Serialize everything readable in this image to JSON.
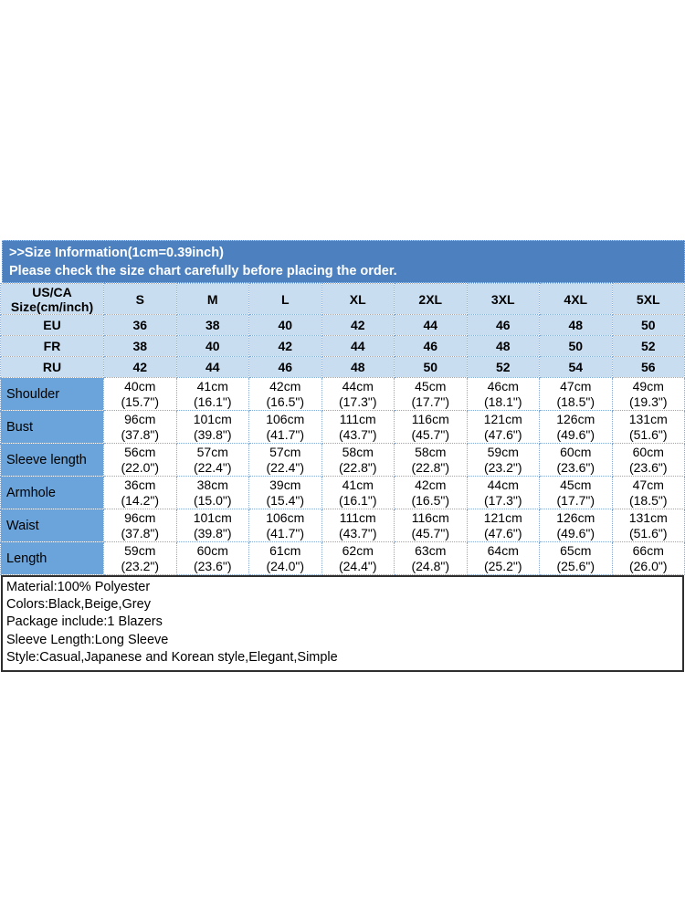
{
  "banner": {
    "line1": ">>Size Information(1cm=0.39inch)",
    "line2": "Please check the size chart carefully before placing the order."
  },
  "table": {
    "corner": [
      "US/CA",
      "Size(cm/inch)"
    ],
    "sizes": [
      "S",
      "M",
      "L",
      "XL",
      "2XL",
      "3XL",
      "4XL",
      "5XL"
    ],
    "regions": [
      {
        "label": "EU",
        "values": [
          "36",
          "38",
          "40",
          "42",
          "44",
          "46",
          "48",
          "50"
        ]
      },
      {
        "label": "FR",
        "values": [
          "38",
          "40",
          "42",
          "44",
          "46",
          "48",
          "50",
          "52"
        ]
      },
      {
        "label": "RU",
        "values": [
          "42",
          "44",
          "46",
          "48",
          "50",
          "52",
          "54",
          "56"
        ]
      }
    ],
    "measurements": [
      {
        "label": "Shoulder",
        "cm": [
          "40cm",
          "41cm",
          "42cm",
          "44cm",
          "45cm",
          "46cm",
          "47cm",
          "49cm"
        ],
        "inch": [
          "(15.7\")",
          "(16.1\")",
          "(16.5\")",
          "(17.3\")",
          "(17.7\")",
          "(18.1\")",
          "(18.5\")",
          "(19.3\")"
        ]
      },
      {
        "label": "Bust",
        "cm": [
          "96cm",
          "101cm",
          "106cm",
          "111cm",
          "116cm",
          "121cm",
          "126cm",
          "131cm"
        ],
        "inch": [
          "(37.8\")",
          "(39.8\")",
          "(41.7\")",
          "(43.7\")",
          "(45.7\")",
          "(47.6\")",
          "(49.6\")",
          "(51.6\")"
        ]
      },
      {
        "label": "Sleeve length",
        "cm": [
          "56cm",
          "57cm",
          "57cm",
          "58cm",
          "58cm",
          "59cm",
          "60cm",
          "60cm"
        ],
        "inch": [
          "(22.0\")",
          "(22.4\")",
          "(22.4\")",
          "(22.8\")",
          "(22.8\")",
          "(23.2\")",
          "(23.6\")",
          "(23.6\")"
        ]
      },
      {
        "label": "Armhole",
        "cm": [
          "36cm",
          "38cm",
          "39cm",
          "41cm",
          "42cm",
          "44cm",
          "45cm",
          "47cm"
        ],
        "inch": [
          "(14.2\")",
          "(15.0\")",
          "(15.4\")",
          "(16.1\")",
          "(16.5\")",
          "(17.3\")",
          "(17.7\")",
          "(18.5\")"
        ]
      },
      {
        "label": "Waist",
        "cm": [
          "96cm",
          "101cm",
          "106cm",
          "111cm",
          "116cm",
          "121cm",
          "126cm",
          "131cm"
        ],
        "inch": [
          "(37.8\")",
          "(39.8\")",
          "(41.7\")",
          "(43.7\")",
          "(45.7\")",
          "(47.6\")",
          "(49.6\")",
          "(51.6\")"
        ]
      },
      {
        "label": "Length",
        "cm": [
          "59cm",
          "60cm",
          "61cm",
          "62cm",
          "63cm",
          "64cm",
          "65cm",
          "66cm"
        ],
        "inch": [
          "(23.2\")",
          "(23.6\")",
          "(24.0\")",
          "(24.4\")",
          "(24.8\")",
          "(25.2\")",
          "(25.6\")",
          "(26.0\")"
        ]
      }
    ]
  },
  "notes": {
    "lines": [
      "Material:100% Polyester",
      "Colors:Black,Beige,Grey",
      "Package include:1 Blazers",
      "Sleeve Length:Long Sleeve",
      "Style:Casual,Japanese and Korean style,Elegant,Simple"
    ]
  },
  "colors": {
    "banner_bg": "#4d80bf",
    "light_cell_bg": "#c9ddf1",
    "label_cell_bg": "#6ba4da",
    "cell_border": "#84a9d3",
    "notes_border": "#2e2e2e",
    "banner_text": "#ffffff",
    "body_text": "#000000"
  }
}
